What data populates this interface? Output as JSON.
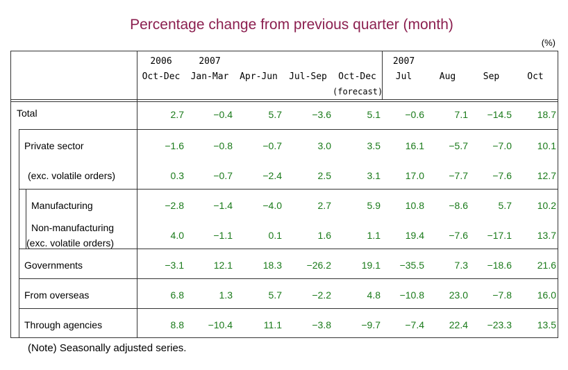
{
  "title": "Percentage change from previous quarter (month)",
  "unit": "(%)",
  "header": {
    "columns": [
      {
        "year": "2006",
        "label": "Oct-Dec"
      },
      {
        "year": "2007",
        "label": "Jan-Mar"
      },
      {
        "label": "Apr-Jun"
      },
      {
        "label": "Jul-Sep"
      },
      {
        "label": "Oct-Dec",
        "note": "(forecast)"
      },
      {
        "year": "2007",
        "label": "Jul"
      },
      {
        "label": "Aug"
      },
      {
        "label": "Sep"
      },
      {
        "label": "Oct"
      }
    ]
  },
  "rows": [
    {
      "label": [
        "Total"
      ],
      "values": [
        "2.7",
        "−0.4",
        "5.7",
        "−3.6",
        "5.1",
        "−0.6",
        "7.1",
        "−14.5",
        "18.7"
      ]
    },
    {
      "label": [
        "Private sector"
      ],
      "values": [
        "−1.6",
        "−0.8",
        "−0.7",
        "3.0",
        "3.5",
        "16.1",
        "−5.7",
        "−7.0",
        "10.1"
      ]
    },
    {
      "label": [
        "(exc. volatile orders)"
      ],
      "values": [
        "0.3",
        "−0.7",
        "−2.4",
        "2.5",
        "3.1",
        "17.0",
        "−7.7",
        "−7.6",
        "12.7"
      ]
    },
    {
      "label": [
        "Manufacturing"
      ],
      "values": [
        "−2.8",
        "−1.4",
        "−4.0",
        "2.7",
        "5.9",
        "10.8",
        "−8.6",
        "5.7",
        "10.2"
      ]
    },
    {
      "label": [
        "Non-manufacturing",
        "(exc. volatile orders)"
      ],
      "values": [
        "4.0",
        "−1.1",
        "0.1",
        "1.6",
        "1.1",
        "19.4",
        "−7.6",
        "−17.1",
        "13.7"
      ]
    },
    {
      "label": [
        "Governments"
      ],
      "values": [
        "−3.1",
        "12.1",
        "18.3",
        "−26.2",
        "19.1",
        "−35.5",
        "7.3",
        "−18.6",
        "21.6"
      ]
    },
    {
      "label": [
        "From overseas"
      ],
      "values": [
        "6.8",
        "1.3",
        "5.7",
        "−2.2",
        "4.8",
        "−10.8",
        "23.0",
        "−7.8",
        "16.0"
      ]
    },
    {
      "label": [
        "Through agencies"
      ],
      "values": [
        "8.8",
        "−10.4",
        "11.1",
        "−3.8",
        "−9.7",
        "−7.4",
        "22.4",
        "−23.3",
        "13.5"
      ]
    }
  ],
  "note": "(Note) Seasonally adjusted series."
}
